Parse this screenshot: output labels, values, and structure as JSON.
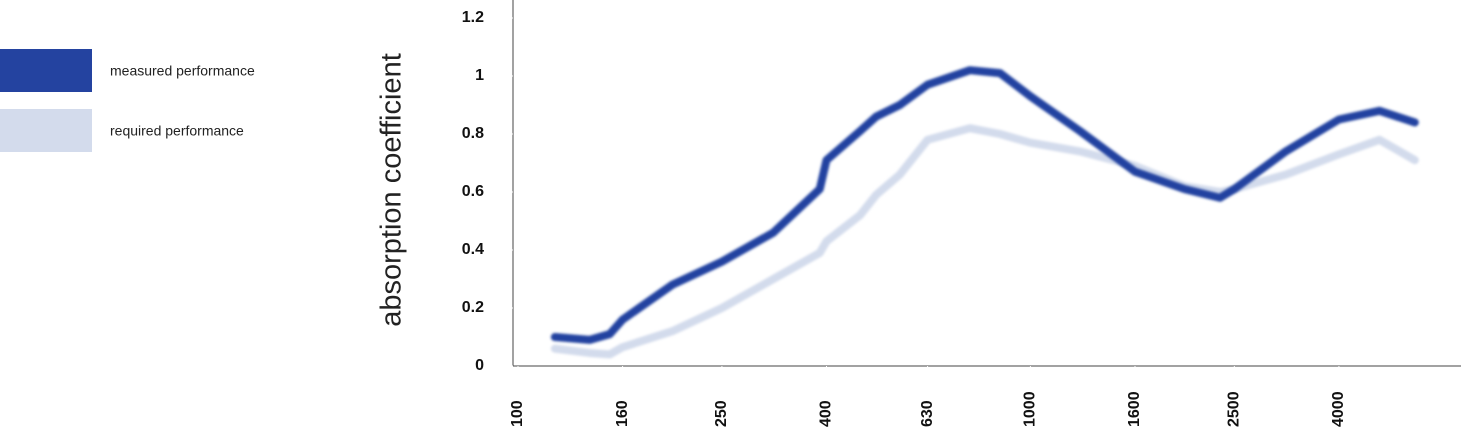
{
  "chart_data": {
    "type": "line",
    "y_label": "absorption coefficient",
    "x_scale": "log",
    "x": [
      118,
      138,
      151,
      160,
      200,
      250,
      315,
      388,
      400,
      465,
      500,
      556,
      630,
      762,
      872,
      1000,
      1250,
      1600,
      2000,
      2343,
      2500,
      3150,
      4000,
      4800,
      5626
    ],
    "series": [
      {
        "name": "measured performance",
        "color": "#2443a0",
        "values": [
          0.1,
          0.09,
          0.11,
          0.16,
          0.28,
          0.36,
          0.46,
          0.61,
          0.71,
          0.81,
          0.86,
          0.9,
          0.97,
          1.02,
          1.01,
          0.93,
          0.81,
          0.67,
          0.61,
          0.58,
          0.61,
          0.74,
          0.85,
          0.88,
          0.84
        ]
      },
      {
        "name": "required performance",
        "color": "#d3dbec",
        "values": [
          0.06,
          0.045,
          0.04,
          0.065,
          0.12,
          0.2,
          0.3,
          0.39,
          0.43,
          0.52,
          0.59,
          0.66,
          0.78,
          0.82,
          0.8,
          0.77,
          0.74,
          0.69,
          0.62,
          0.6,
          0.61,
          0.66,
          0.73,
          0.78,
          0.71
        ]
      }
    ],
    "xlim": [
      100,
      6300
    ],
    "xticks": [
      100,
      160,
      250,
      400,
      630,
      1000,
      1600,
      2500,
      4000
    ],
    "ylim": [
      0,
      1.2
    ],
    "yticks": [
      0,
      0.2,
      0.4,
      0.6,
      0.8,
      1,
      1.2
    ]
  }
}
